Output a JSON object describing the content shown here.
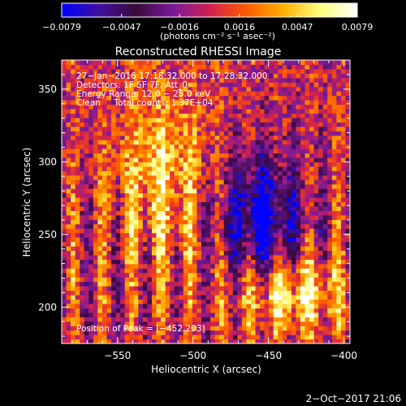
{
  "colorbar": {
    "tick_labels": [
      "−0.0079",
      "−0.0047",
      "−0.0016",
      "0.0016",
      "0.0047",
      "0.0079"
    ],
    "tick_values": [
      -0.0079,
      -0.0047,
      -0.0016,
      0.0016,
      0.0047,
      0.0079
    ],
    "range": [
      -0.0079,
      0.0079
    ],
    "unit_label": "(photons cm⁻² s⁻¹ asec⁻²)",
    "colors": [
      "#0000ff",
      "#4010a0",
      "#3a0a3a",
      "#7a1a9a",
      "#d02050",
      "#ff5a00",
      "#ffb000",
      "#ffff80",
      "#ffffff"
    ]
  },
  "chart_data": {
    "type": "heatmap",
    "title": "Reconstructed RHESSI Image",
    "xlabel": "Heliocentric X (arcsec)",
    "ylabel": "Heliocentric Y (arcsec)",
    "xlim": [
      -587,
      -396
    ],
    "ylim": [
      175,
      370
    ],
    "x_ticks": [
      -550,
      -500,
      -450,
      -400
    ],
    "y_ticks": [
      200,
      250,
      300,
      350
    ],
    "x_tick_labels": [
      "−550",
      "−500",
      "−450",
      "−400"
    ],
    "y_tick_labels": [
      "200",
      "250",
      "300",
      "350"
    ],
    "grid": false,
    "colorbar_position": "top",
    "info_lines": [
      "27−Jan−2016 17:18:32.000 to 17:28:32.000",
      "Detectors: 1F 5F 7F, Att_0",
      "Energy Range: 12.0 − 25.0 keV",
      "Clean     Total counts: 1.37E+04"
    ],
    "peak_label": "Position of Peak = [−452,203]",
    "peak_position": [
      -452,
      203
    ],
    "grid_cells": [
      64,
      64
    ],
    "features": [
      {
        "kind": "negative-minimum",
        "center": [
          -455,
          262
        ],
        "value": -0.0079
      },
      {
        "kind": "positive-band",
        "center": [
          -520,
          290
        ],
        "value": 0.006
      },
      {
        "kind": "positive-band",
        "center": [
          -435,
          210
        ],
        "value": 0.0079
      }
    ]
  },
  "footer": {
    "timestamp": "2−Oct−2017 21:06"
  }
}
